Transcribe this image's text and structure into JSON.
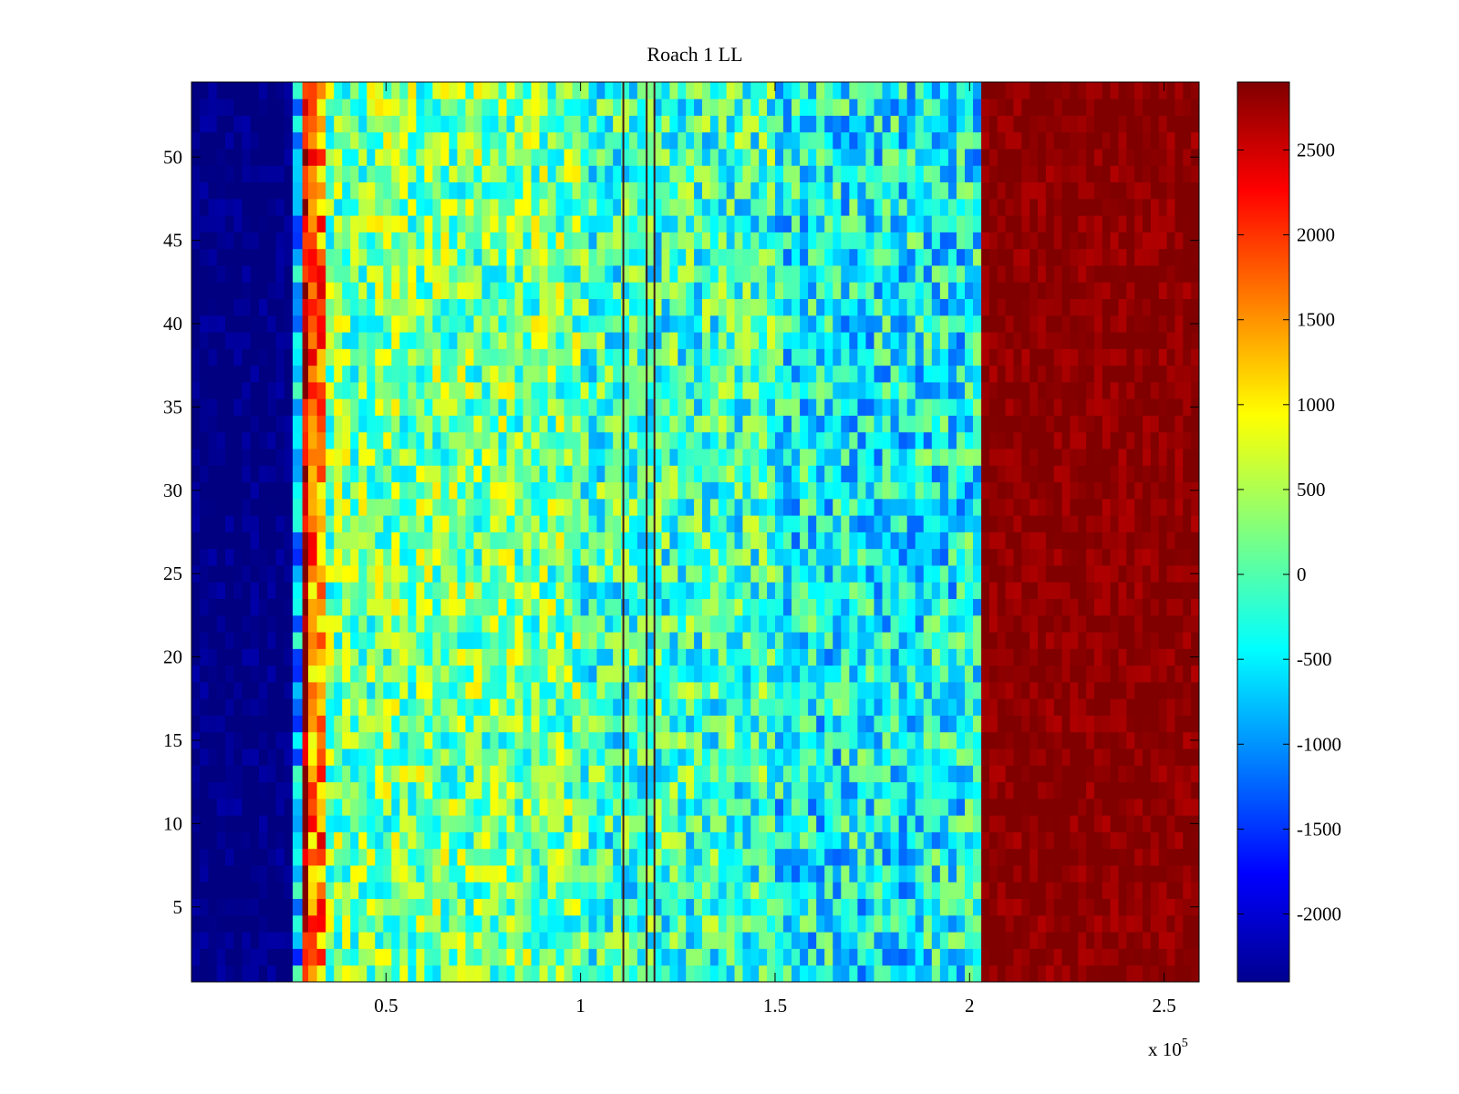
{
  "chart_data": {
    "type": "heatmap",
    "title": "Roach 1 LL",
    "xlabel": "",
    "ylabel": "",
    "x_multiplier_label": "x 10",
    "x_multiplier_exponent": "5",
    "xlim": [
      0,
      2.59
    ],
    "ylim": [
      0.5,
      54.5
    ],
    "xticks": [
      0.5,
      1,
      1.5,
      2,
      2.5
    ],
    "xtick_labels": [
      "0.5",
      "1",
      "1.5",
      "2",
      "2.5"
    ],
    "yticks": [
      5,
      10,
      15,
      20,
      25,
      30,
      35,
      40,
      45,
      50
    ],
    "ytick_labels": [
      "5",
      "10",
      "15",
      "20",
      "25",
      "30",
      "35",
      "40",
      "45",
      "50"
    ],
    "colormap": "jet",
    "clim": [
      -2400,
      2900
    ],
    "colorbar_ticks": [
      2500,
      2000,
      1500,
      1000,
      500,
      0,
      -500,
      -1000,
      -1500,
      -2000
    ],
    "colorbar_tick_labels": [
      "2500",
      "2000",
      "1500",
      "1000",
      "500",
      "0",
      "-500",
      "-1000",
      "-1500",
      "-2000"
    ],
    "rows": 54,
    "regions": [
      {
        "x_start": 0.0,
        "x_end": 0.26,
        "value": -2400
      },
      {
        "x_start": 0.26,
        "x_end": 0.285,
        "value": -800
      },
      {
        "x_start": 0.285,
        "x_end": 0.3,
        "value": 2700
      },
      {
        "x_start": 0.3,
        "x_end": 0.345,
        "value": 1600
      },
      {
        "x_start": 0.345,
        "x_end": 1.0,
        "value": 200
      },
      {
        "x_start": 1.0,
        "x_end": 1.5,
        "value": -100
      },
      {
        "x_start": 1.5,
        "x_end": 2.03,
        "value": -400
      },
      {
        "x_start": 2.03,
        "x_end": 2.59,
        "value": 2850
      }
    ],
    "vertical_lines_x": [
      1.11,
      1.17,
      1.19
    ]
  }
}
